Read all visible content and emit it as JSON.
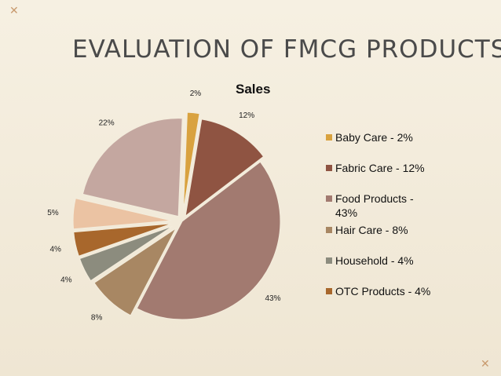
{
  "slide": {
    "title": "EVALUATION OF FMCG PRODUCTS",
    "deco_symbol": "✕"
  },
  "chart_data": {
    "type": "pie",
    "title": "Sales",
    "legend_position": "right",
    "slices": [
      {
        "name": "Baby Care - 2%",
        "value": 2,
        "label": "2%",
        "color": "#d9a23f",
        "explode": 14
      },
      {
        "name": "Fabric Care - 12%",
        "value": 12,
        "label": "12%",
        "color": "#8f5442",
        "explode": 8
      },
      {
        "name": "Food Products - 43%",
        "value": 43,
        "label": "43%",
        "color": "#a27a70",
        "explode": 0
      },
      {
        "name": "Hair Care - 8%",
        "value": 8,
        "label": "8%",
        "color": "#a88763",
        "explode": 12
      },
      {
        "name": "Household - 4%",
        "value": 4,
        "label": "4%",
        "color": "#8c8c7e",
        "explode": 14
      },
      {
        "name": "OTC Products - 4%",
        "value": 4,
        "label": "4%",
        "color": "#a8672c",
        "explode": 14
      },
      {
        "name": "",
        "value": 5,
        "label": "5%",
        "color": "#ebc3a3",
        "explode": 14
      },
      {
        "name": "",
        "value": 22,
        "label": "22%",
        "color": "#c4a7a0",
        "explode": 8
      }
    ]
  }
}
